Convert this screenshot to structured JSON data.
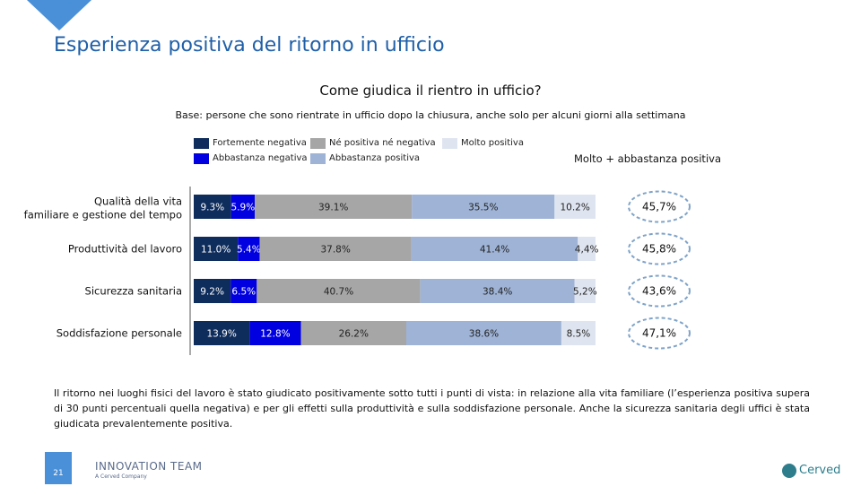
{
  "slide": {
    "title": "Esperienza positiva del ritorno in ufficio",
    "page_number": "21",
    "body_text": "Il ritorno nei luoghi fisici del lavoro è stato giudicato positivamente sotto tutti i punti di vista: in relazione alla vita familiare (l’esperienza positiva supera di 30 punti percentuali quella negativa) e per gli effetti sulla produttività e sulla soddisfazione personale. Anche la sicurezza sanitaria degli uffici è stata giudicata prevalentemente positiva.",
    "logo_left_name": "INNOVATION TEAM",
    "logo_left_tagline": "A Cerved Company",
    "logo_right_name": "Cerved"
  },
  "colors": {
    "title": "#1f5fa8",
    "accent": "#4a90d9",
    "fortemente_negativa": "#0f2d5c",
    "abbastanza_negativa": "#0000e0",
    "ne_positiva_ne_negativa": "#a6a6a6",
    "abbastanza_positiva": "#9eb3d6",
    "molto_positiva": "#dfe5f0"
  },
  "chart_data": {
    "type": "bar",
    "orientation": "horizontal-stacked-100",
    "title": "Come giudica il rientro in ufficio?",
    "subtitle": "Base: persone che sono rientrate in ufficio dopo la chiusura, anche solo per alcuni giorni alla settimana",
    "highlight_header": "Molto + abbastanza positiva",
    "legend": [
      {
        "key": "fortemente_negativa",
        "label": "Fortemente negativa"
      },
      {
        "key": "ne_positiva_ne_negativa",
        "label": "Né positiva né negativa"
      },
      {
        "key": "molto_positiva",
        "label": "Molto positiva"
      },
      {
        "key": "abbastanza_negativa",
        "label": "Abbastanza negativa"
      },
      {
        "key": "abbastanza_positiva",
        "label": "Abbastanza positiva"
      }
    ],
    "categories": [
      "Qualità della vita familiare e gestione del tempo",
      "Produttività del lavoro",
      "Sicurezza sanitaria",
      "Soddisfazione personale"
    ],
    "series": [
      {
        "name": "Fortemente negativa",
        "key": "fortemente_negativa",
        "values": [
          9.3,
          11.0,
          9.2,
          13.9
        ],
        "labels": [
          "9.3%",
          "11.0%",
          "9.2%",
          "13.9%"
        ]
      },
      {
        "name": "Abbastanza negativa",
        "key": "abbastanza_negativa",
        "values": [
          5.9,
          5.4,
          6.5,
          12.8
        ],
        "labels": [
          "5.9%",
          "5.4%",
          "6.5%",
          "12.8%"
        ]
      },
      {
        "name": "Né positiva né negativa",
        "key": "ne_positiva_ne_negativa",
        "values": [
          39.1,
          37.8,
          40.7,
          26.2
        ],
        "labels": [
          "39.1%",
          "37.8%",
          "40.7%",
          "26.2%"
        ]
      },
      {
        "name": "Abbastanza positiva",
        "key": "abbastanza_positiva",
        "values": [
          35.5,
          41.4,
          38.4,
          38.6
        ],
        "labels": [
          "35.5%",
          "41.4%",
          "38.4%",
          "38.6%"
        ]
      },
      {
        "name": "Molto positiva",
        "key": "molto_positiva",
        "values": [
          10.2,
          4.4,
          5.2,
          8.5
        ],
        "labels": [
          "10.2%",
          "4,4%",
          "5,2%",
          "8.5%"
        ]
      }
    ],
    "totals_positive": [
      "45,7%",
      "45,8%",
      "43,6%",
      "47,1%"
    ],
    "xlim": [
      0,
      100
    ]
  }
}
